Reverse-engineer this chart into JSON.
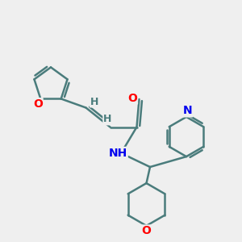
{
  "background_color": "#efefef",
  "bond_color": "#4a7c7c",
  "bond_width": 1.8,
  "atom_colors": {
    "O": "#ff0000",
    "N": "#0000ee",
    "H": "#4a7c7c"
  },
  "figsize": [
    3.0,
    3.0
  ],
  "dpi": 100
}
